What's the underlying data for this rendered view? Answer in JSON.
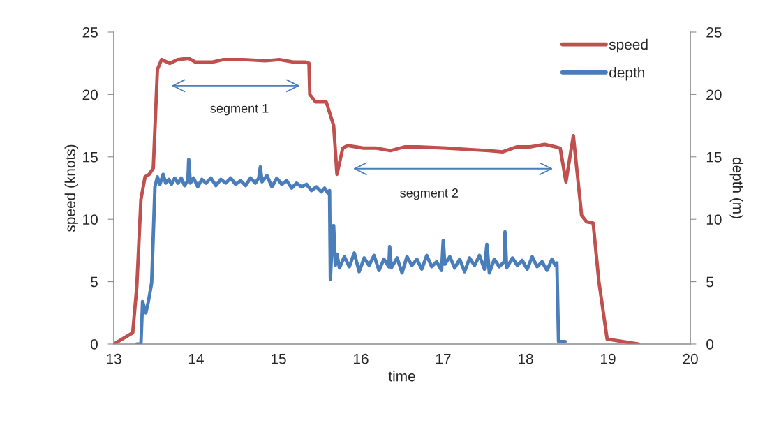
{
  "chart_data": {
    "type": "line",
    "xlabel": "time",
    "ylabel": "speed (knots)",
    "y2label": "depth (m)",
    "xlim": [
      13,
      20
    ],
    "xticks": [
      13,
      14,
      15,
      16,
      17,
      18,
      19,
      20
    ],
    "ylim": [
      0,
      25
    ],
    "yticks": [
      0,
      5,
      10,
      15,
      20,
      25
    ],
    "y2lim": [
      0,
      25
    ],
    "y2ticks": [
      0,
      5,
      10,
      15,
      20,
      25
    ],
    "grid": false,
    "legend": "top right",
    "marker": "none",
    "line_style": "solid",
    "series": [
      {
        "name": "speed",
        "color": "#c0504d",
        "x": [
          13.0,
          13.23,
          13.28,
          13.33,
          13.38,
          13.43,
          13.48,
          13.53,
          13.58,
          13.68,
          13.78,
          13.91,
          13.99,
          14.2,
          14.33,
          14.58,
          14.84,
          15.01,
          15.18,
          15.32,
          15.37,
          15.38,
          15.45,
          15.58,
          15.67,
          15.71,
          15.78,
          15.84,
          15.94,
          16.03,
          16.19,
          16.36,
          16.53,
          16.7,
          17.04,
          17.3,
          17.55,
          17.72,
          17.89,
          18.06,
          18.23,
          18.36,
          18.42,
          18.49,
          18.58,
          18.68,
          18.74,
          18.82,
          18.89,
          18.99,
          19.37
        ],
        "values": [
          0,
          0.9,
          4.6,
          11.6,
          13.4,
          13.6,
          14.1,
          22.0,
          22.8,
          22.5,
          22.8,
          22.9,
          22.6,
          22.6,
          22.8,
          22.8,
          22.7,
          22.8,
          22.6,
          22.6,
          22.5,
          20.0,
          19.4,
          19.4,
          17.5,
          13.6,
          15.7,
          15.9,
          15.8,
          15.7,
          15.7,
          15.5,
          15.8,
          15.8,
          15.7,
          15.6,
          15.5,
          15.4,
          15.8,
          15.8,
          16.0,
          15.8,
          15.7,
          13.0,
          16.7,
          10.3,
          9.8,
          9.7,
          5.0,
          0.4,
          0
        ]
      },
      {
        "name": "depth",
        "color": "#4a7ebb",
        "axis": "y2",
        "x": [
          13.28,
          13.33,
          13.35,
          13.39,
          13.42,
          13.46,
          13.5,
          13.53,
          13.56,
          13.6,
          13.63,
          13.67,
          13.7,
          13.74,
          13.78,
          13.82,
          13.86,
          13.9,
          13.91,
          13.93,
          13.97,
          14.02,
          14.07,
          14.12,
          14.18,
          14.24,
          14.3,
          14.36,
          14.42,
          14.48,
          14.54,
          14.6,
          14.66,
          14.72,
          14.76,
          14.78,
          14.8,
          14.86,
          14.92,
          14.98,
          15.04,
          15.1,
          15.16,
          15.22,
          15.28,
          15.34,
          15.4,
          15.46,
          15.52,
          15.56,
          15.6,
          15.62,
          15.63,
          15.65,
          15.67,
          15.69,
          15.71,
          15.74,
          15.8,
          15.86,
          15.92,
          15.98,
          16.04,
          16.1,
          16.16,
          16.22,
          16.28,
          16.34,
          16.35,
          16.37,
          16.44,
          16.5,
          16.56,
          16.62,
          16.68,
          16.74,
          16.8,
          16.86,
          16.92,
          16.98,
          17.0,
          17.02,
          17.08,
          17.14,
          17.2,
          17.26,
          17.32,
          17.38,
          17.44,
          17.5,
          17.53,
          17.56,
          17.62,
          17.68,
          17.74,
          17.75,
          17.77,
          17.84,
          17.9,
          17.96,
          18.02,
          18.08,
          18.14,
          18.2,
          18.26,
          18.32,
          18.36,
          18.38,
          18.4,
          18.48
        ],
        "values": [
          0,
          0,
          3.4,
          2.5,
          3.4,
          4.9,
          12.6,
          13.4,
          12.8,
          13.6,
          12.9,
          13.2,
          12.8,
          13.3,
          12.9,
          13.3,
          12.7,
          13.1,
          14.8,
          12.9,
          13.3,
          12.6,
          13.2,
          12.9,
          13.3,
          12.7,
          13.2,
          12.9,
          13.3,
          12.8,
          13.1,
          12.7,
          13.3,
          12.9,
          13.3,
          14.2,
          13.0,
          13.5,
          12.6,
          13.3,
          12.8,
          13.1,
          12.5,
          12.9,
          12.6,
          12.8,
          12.3,
          12.6,
          12.2,
          12.5,
          12.1,
          12.3,
          5.2,
          8.0,
          9.5,
          6.3,
          7.2,
          6.1,
          7.0,
          6.2,
          7.3,
          5.8,
          6.9,
          6.3,
          7.1,
          5.9,
          6.8,
          6.2,
          7.8,
          6.1,
          6.9,
          5.7,
          7.0,
          6.3,
          6.8,
          6.0,
          7.1,
          6.2,
          6.6,
          5.9,
          8.3,
          6.4,
          7.0,
          6.1,
          6.8,
          5.8,
          6.9,
          6.3,
          7.1,
          6.0,
          8.0,
          5.7,
          6.8,
          6.2,
          6.6,
          9.0,
          6.1,
          6.9,
          6.3,
          6.7,
          6.0,
          7.0,
          6.2,
          6.6,
          5.9,
          6.8,
          6.3,
          6.5,
          0.2,
          0.2
        ]
      }
    ],
    "annotations": [
      "segment 1",
      "segment 2"
    ]
  }
}
